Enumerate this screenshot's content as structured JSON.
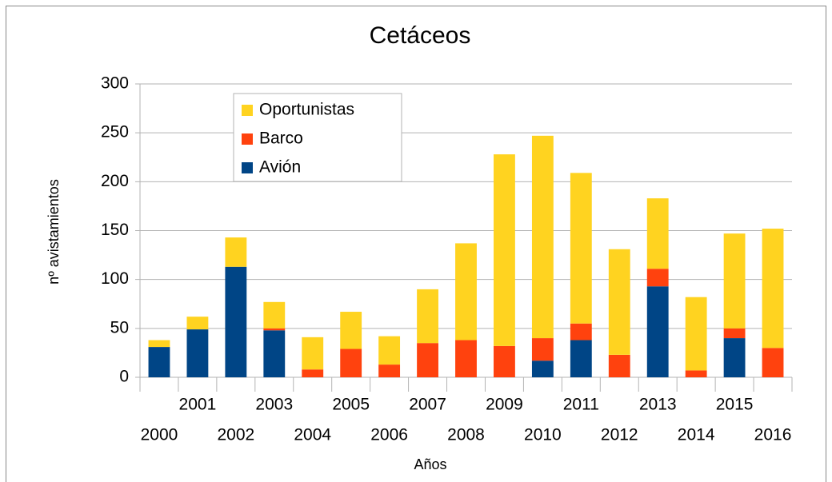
{
  "chart_data": {
    "type": "stacked_bar",
    "title": "Cetáceos",
    "x_label": "Años",
    "y_label": "nº avistamientos",
    "categories": [
      "2000",
      "2001",
      "2002",
      "2003",
      "2004",
      "2005",
      "2006",
      "2007",
      "2008",
      "2009",
      "2010",
      "2011",
      "2012",
      "2013",
      "2014",
      "2015",
      "2016"
    ],
    "series": [
      {
        "name": "Avión",
        "color": "#004586",
        "values": [
          31,
          49,
          113,
          48,
          0,
          0,
          0,
          0,
          0,
          0,
          17,
          38,
          0,
          93,
          0,
          40,
          0
        ]
      },
      {
        "name": "Barco",
        "color": "#ff420e",
        "values": [
          0,
          0,
          0,
          2,
          8,
          29,
          13,
          35,
          38,
          32,
          23,
          17,
          23,
          18,
          7,
          10,
          30
        ]
      },
      {
        "name": "Oportunistas",
        "color": "#ffd320",
        "values": [
          7,
          13,
          30,
          27,
          33,
          38,
          29,
          55,
          99,
          196,
          207,
          154,
          108,
          72,
          75,
          97,
          122
        ]
      }
    ],
    "ylim": [
      0,
      300
    ],
    "yticks": [
      0,
      50,
      100,
      150,
      200,
      250,
      300
    ],
    "grid": true
  }
}
